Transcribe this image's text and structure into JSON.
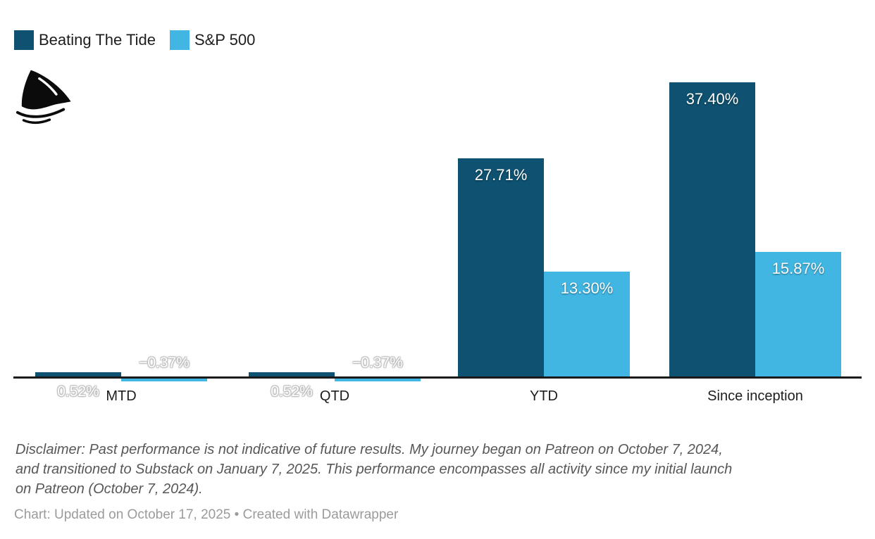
{
  "colors": {
    "primary": "#0e5170",
    "secondary": "#41b6e2",
    "axis": "#1a1a1a",
    "category_text": "#1d1d1d",
    "disclaimer_text": "#575757",
    "footer_text": "#9b9b9b"
  },
  "legend": {
    "items": [
      {
        "label": "Beating The Tide",
        "color": "#0e5170"
      },
      {
        "label": "S&P 500",
        "color": "#41b6e2"
      }
    ]
  },
  "logo": {
    "name": "shark-fin-logo"
  },
  "chart_data": {
    "type": "bar",
    "categories": [
      "MTD",
      "QTD",
      "YTD",
      "Since inception"
    ],
    "series": [
      {
        "name": "Beating The Tide",
        "color": "#0e5170",
        "values": [
          0.52,
          0.52,
          27.71,
          37.4
        ],
        "value_labels": [
          "0.52%",
          "0.52%",
          "27.71%",
          "37.40%"
        ]
      },
      {
        "name": "S&P 500",
        "color": "#41b6e2",
        "values": [
          -0.37,
          -0.37,
          13.3,
          15.87
        ],
        "value_labels": [
          "−0.37%",
          "−0.37%",
          "13.30%",
          "15.87%"
        ]
      }
    ],
    "unit": "%",
    "ylim": [
      -0.37,
      37.4
    ],
    "grid": false,
    "axis_baseline": 0,
    "legend_position": "top-left"
  },
  "disclaimer": {
    "lines": [
      "Disclaimer: Past performance is not indicative of future results. My journey began on Patreon on October 7, 2024,",
      "and transitioned to Substack on January 7, 2025. This performance encompasses all activity since my initial launch",
      "on Patreon (October 7, 2024)."
    ]
  },
  "footer": {
    "prefix": "Chart: Updated on October 17, 2025",
    "separator": "•",
    "credit": "Created with Datawrapper"
  }
}
